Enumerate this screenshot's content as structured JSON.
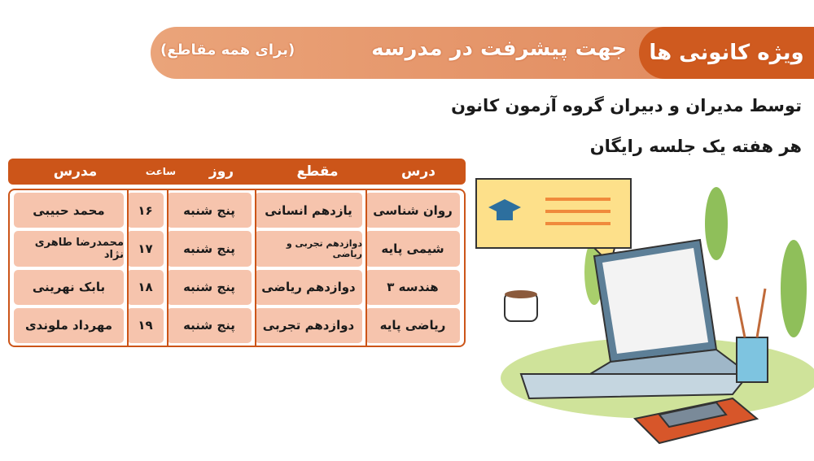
{
  "banner": {
    "highlight": "ویژه کانونی ها",
    "title": "جهت پیشرفت در مدرسه",
    "subtitle": "(برای همه مقاطع)"
  },
  "lines": [
    "توسط مدیران و دبیران گروه آزمون کانون",
    "هر هفته یک جلسه رایگان"
  ],
  "table": {
    "headers": [
      "درس",
      "مقطع",
      "روز",
      "ساعت",
      "مدرس"
    ],
    "rows": [
      [
        "روان شناسی",
        "یازدهم انسانی",
        "پنج شنبه",
        "۱۶",
        "محمد حبیبی"
      ],
      [
        "شیمی پایه",
        "دوازدهم تجربی و ریاضی",
        "پنج شنبه",
        "۱۷",
        "محمدرضا طاهری نژاد"
      ],
      [
        "هندسه ۳",
        "دوازدهم ریاضی",
        "پنج شنبه",
        "۱۸",
        "بابک نهرینی"
      ],
      [
        "ریاضی پایه",
        "دوازدهم تجربی",
        "پنج شنبه",
        "۱۹",
        "مهرداد ملوندی"
      ]
    ]
  },
  "colors": {
    "accent": "#cc5519",
    "cell": "#f6c4ad",
    "banner": "#e0875a"
  },
  "illustration": {
    "icons": [
      "laptop-icon",
      "graduation-cap-icon",
      "coffee-cup-icon",
      "book-icon",
      "phone-icon",
      "pen-holder-icon",
      "plant-icon"
    ]
  }
}
